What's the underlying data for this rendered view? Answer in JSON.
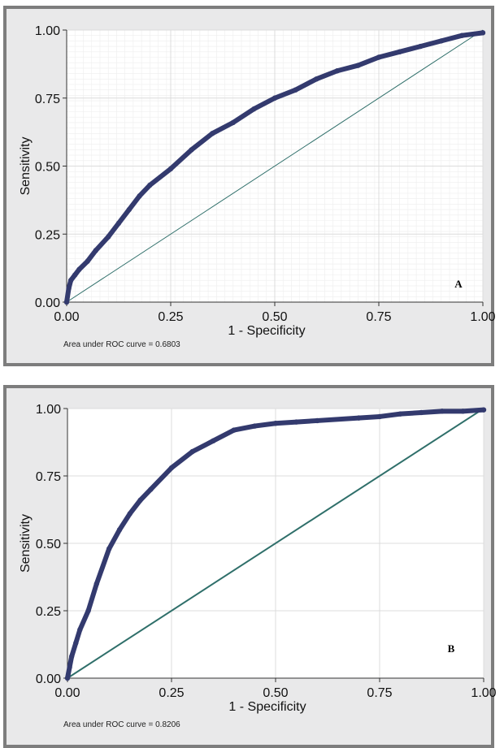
{
  "chart_data": [
    {
      "type": "line",
      "panel_label": "A",
      "xlabel": "1 - Specificity",
      "ylabel": "Sensitivity",
      "xlim": [
        0,
        1
      ],
      "ylim": [
        0,
        1
      ],
      "xticks": [
        "0.00",
        "0.25",
        "0.50",
        "0.75",
        "1.00"
      ],
      "yticks": [
        "0.00",
        "0.25",
        "0.50",
        "0.75",
        "1.00"
      ],
      "grid": true,
      "annotation": "Area under ROC curve = 0.6803",
      "series": [
        {
          "x": [
            0,
            0.005,
            0.01,
            0.02,
            0.03,
            0.05,
            0.07,
            0.1,
            0.125,
            0.15,
            0.175,
            0.2,
            0.25,
            0.3,
            0.35,
            0.4,
            0.45,
            0.5,
            0.55,
            0.6,
            0.65,
            0.7,
            0.75,
            0.8,
            0.85,
            0.9,
            0.95,
            1.0
          ],
          "y": [
            0,
            0.05,
            0.08,
            0.1,
            0.12,
            0.15,
            0.19,
            0.24,
            0.29,
            0.34,
            0.39,
            0.43,
            0.49,
            0.56,
            0.62,
            0.66,
            0.71,
            0.75,
            0.78,
            0.82,
            0.85,
            0.87,
            0.9,
            0.92,
            0.94,
            0.96,
            0.98,
            0.99
          ]
        },
        {
          "x": [
            0,
            1
          ],
          "y": [
            0,
            1
          ]
        }
      ]
    },
    {
      "type": "line",
      "panel_label": "B",
      "xlabel": "1 - Specificity",
      "ylabel": "Sensitivity",
      "xlim": [
        0,
        1
      ],
      "ylim": [
        0,
        1
      ],
      "xticks": [
        "0.00",
        "0.25",
        "0.50",
        "0.75",
        "1.00"
      ],
      "yticks": [
        "0.00",
        "0.25",
        "0.50",
        "0.75",
        "1.00"
      ],
      "grid": true,
      "annotation": "Area under ROC curve = 0.8206",
      "series": [
        {
          "x": [
            0,
            0.005,
            0.01,
            0.02,
            0.03,
            0.05,
            0.07,
            0.1,
            0.125,
            0.15,
            0.175,
            0.2,
            0.25,
            0.3,
            0.35,
            0.4,
            0.45,
            0.5,
            0.55,
            0.6,
            0.7,
            0.75,
            0.8,
            0.85,
            0.9,
            0.95,
            1.0
          ],
          "y": [
            0,
            0.04,
            0.08,
            0.13,
            0.18,
            0.25,
            0.35,
            0.48,
            0.55,
            0.61,
            0.66,
            0.7,
            0.78,
            0.84,
            0.88,
            0.92,
            0.935,
            0.945,
            0.95,
            0.955,
            0.965,
            0.97,
            0.98,
            0.985,
            0.99,
            0.99,
            0.995
          ]
        },
        {
          "x": [
            0,
            1
          ],
          "y": [
            0,
            1
          ]
        }
      ]
    }
  ]
}
